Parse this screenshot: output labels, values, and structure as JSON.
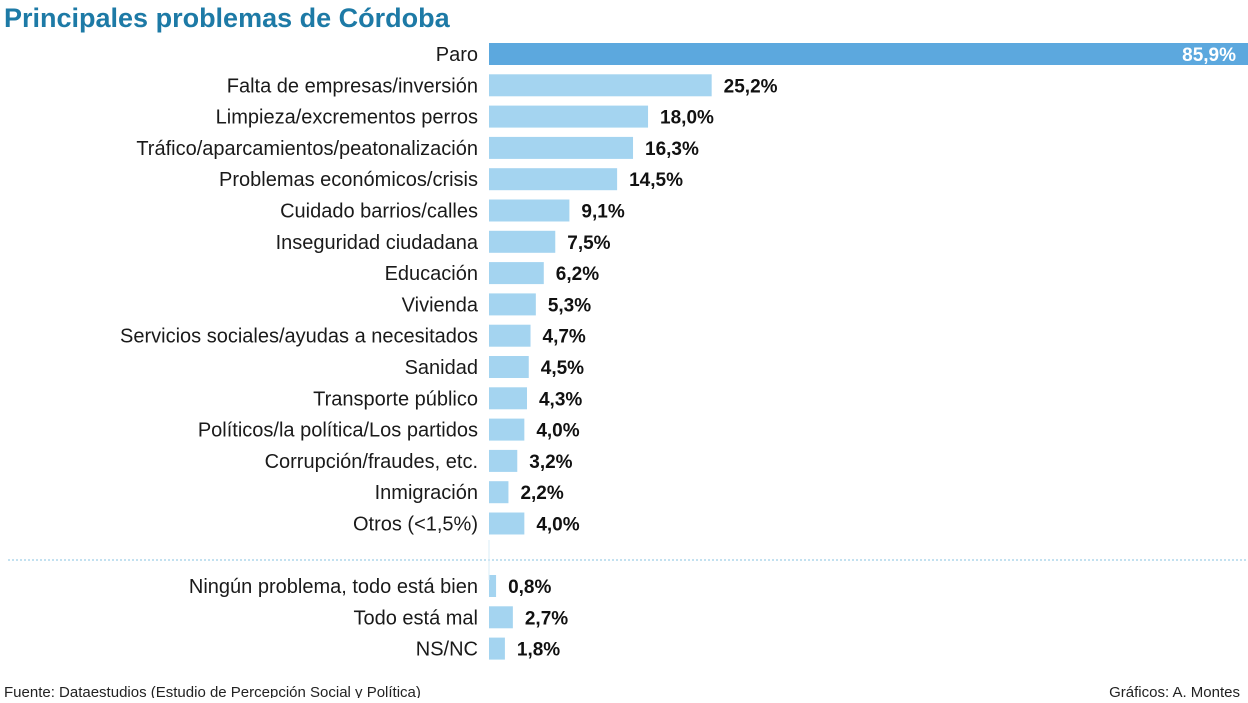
{
  "colors": {
    "title": "#1d7aa6",
    "highlight_bar": "#5ca8de",
    "bar": "#a4d4f0",
    "highlight_value": "#ffffff",
    "separator": "#9fcfe8"
  },
  "chart_data": {
    "type": "bar",
    "orientation": "horizontal",
    "title": "Principales problemas de Córdoba",
    "unit": "%",
    "xlim": [
      0,
      85.9
    ],
    "grid": false,
    "groups": [
      {
        "categories": [
          "Paro",
          "Falta de empresas/inversión",
          "Limpieza/excrementos perros",
          "Tráfico/aparcamientos/peatonalización",
          "Problemas económicos/crisis",
          "Cuidado barrios/calles",
          "Inseguridad ciudadana",
          "Educación",
          "Vivienda",
          "Servicios sociales/ayudas a necesitados",
          "Sanidad",
          "Transporte público",
          "Políticos/la política/Los partidos",
          "Corrupción/fraudes, etc.",
          "Inmigración",
          "Otros (<1,5%)"
        ],
        "values": [
          85.9,
          25.2,
          18.0,
          16.3,
          14.5,
          9.1,
          7.5,
          6.2,
          5.3,
          4.7,
          4.5,
          4.3,
          4.0,
          3.2,
          2.2,
          4.0
        ],
        "labels": [
          "85,9%",
          "25,2%",
          "18,0%",
          "16,3%",
          "14,5%",
          "9,1%",
          "7,5%",
          "6,2%",
          "5,3%",
          "4,7%",
          "4,5%",
          "4,3%",
          "4,0%",
          "3,2%",
          "2,2%",
          "4,0%"
        ]
      },
      {
        "categories": [
          "Ningún problema, todo está bien",
          "Todo está mal",
          "NS/NC"
        ],
        "values": [
          0.8,
          2.7,
          1.8
        ],
        "labels": [
          "0,8%",
          "2,7%",
          "1,8%"
        ]
      }
    ]
  },
  "footer": {
    "source": "Fuente: Dataestudios (Estudio de Percepción Social y Política)",
    "credit": "Gráficos: A. Montes"
  }
}
